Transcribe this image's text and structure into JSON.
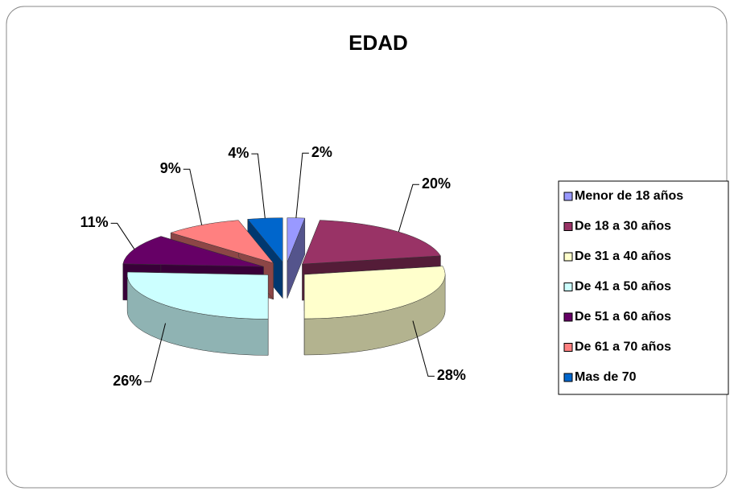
{
  "chart_data": {
    "type": "pie3d",
    "title": "EDAD",
    "categories": [
      "Menor de 18 años",
      "De 18 a 30 años",
      "De 31 a 40 años",
      "De 41 a 50 años",
      "De 51 a 60 años",
      "De 61 a 70 años",
      "Mas de 70"
    ],
    "values": [
      2,
      20,
      28,
      26,
      11,
      9,
      4
    ],
    "value_labels": [
      "2%",
      "20%",
      "28%",
      "26%",
      "11%",
      "9%",
      "4%"
    ],
    "colors": [
      "#9999ff",
      "#993366",
      "#ffffcc",
      "#ccffff",
      "#660066",
      "#ff8080",
      "#0066cc"
    ],
    "legend": "right"
  }
}
